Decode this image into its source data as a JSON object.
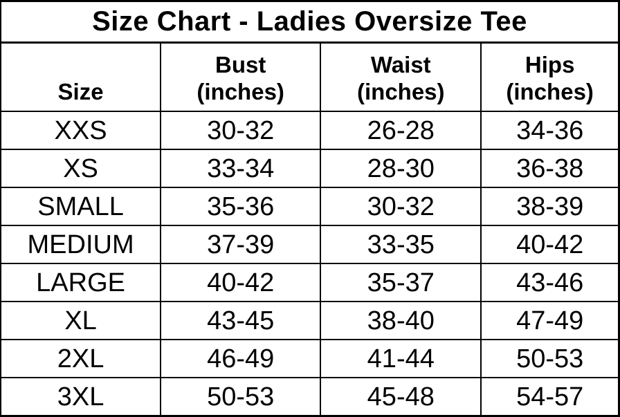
{
  "chart_data": {
    "type": "table",
    "title": "Size Chart - Ladies Oversize Tee",
    "columns": [
      {
        "label": "Size",
        "unit": ""
      },
      {
        "label": "Bust",
        "unit": "(inches)"
      },
      {
        "label": "Waist",
        "unit": "(inches)"
      },
      {
        "label": "Hips",
        "unit": "(inches)"
      }
    ],
    "rows": [
      [
        "XXS",
        "30-32",
        "26-28",
        "34-36"
      ],
      [
        "XS",
        "33-34",
        "28-30",
        "36-38"
      ],
      [
        "SMALL",
        "35-36",
        "30-32",
        "38-39"
      ],
      [
        "MEDIUM",
        "37-39",
        "33-35",
        "40-42"
      ],
      [
        "LARGE",
        "40-42",
        "35-37",
        "43-46"
      ],
      [
        "XL",
        "43-45",
        "38-40",
        "47-49"
      ],
      [
        "2XL",
        "46-49",
        "41-44",
        "50-53"
      ],
      [
        "3XL",
        "50-53",
        "45-48",
        "54-57"
      ]
    ]
  },
  "colors": {
    "text": "#000000",
    "background": "#ffffff",
    "grid_border": "#000000",
    "cropped_left_edge": "#c9c9c9"
  }
}
